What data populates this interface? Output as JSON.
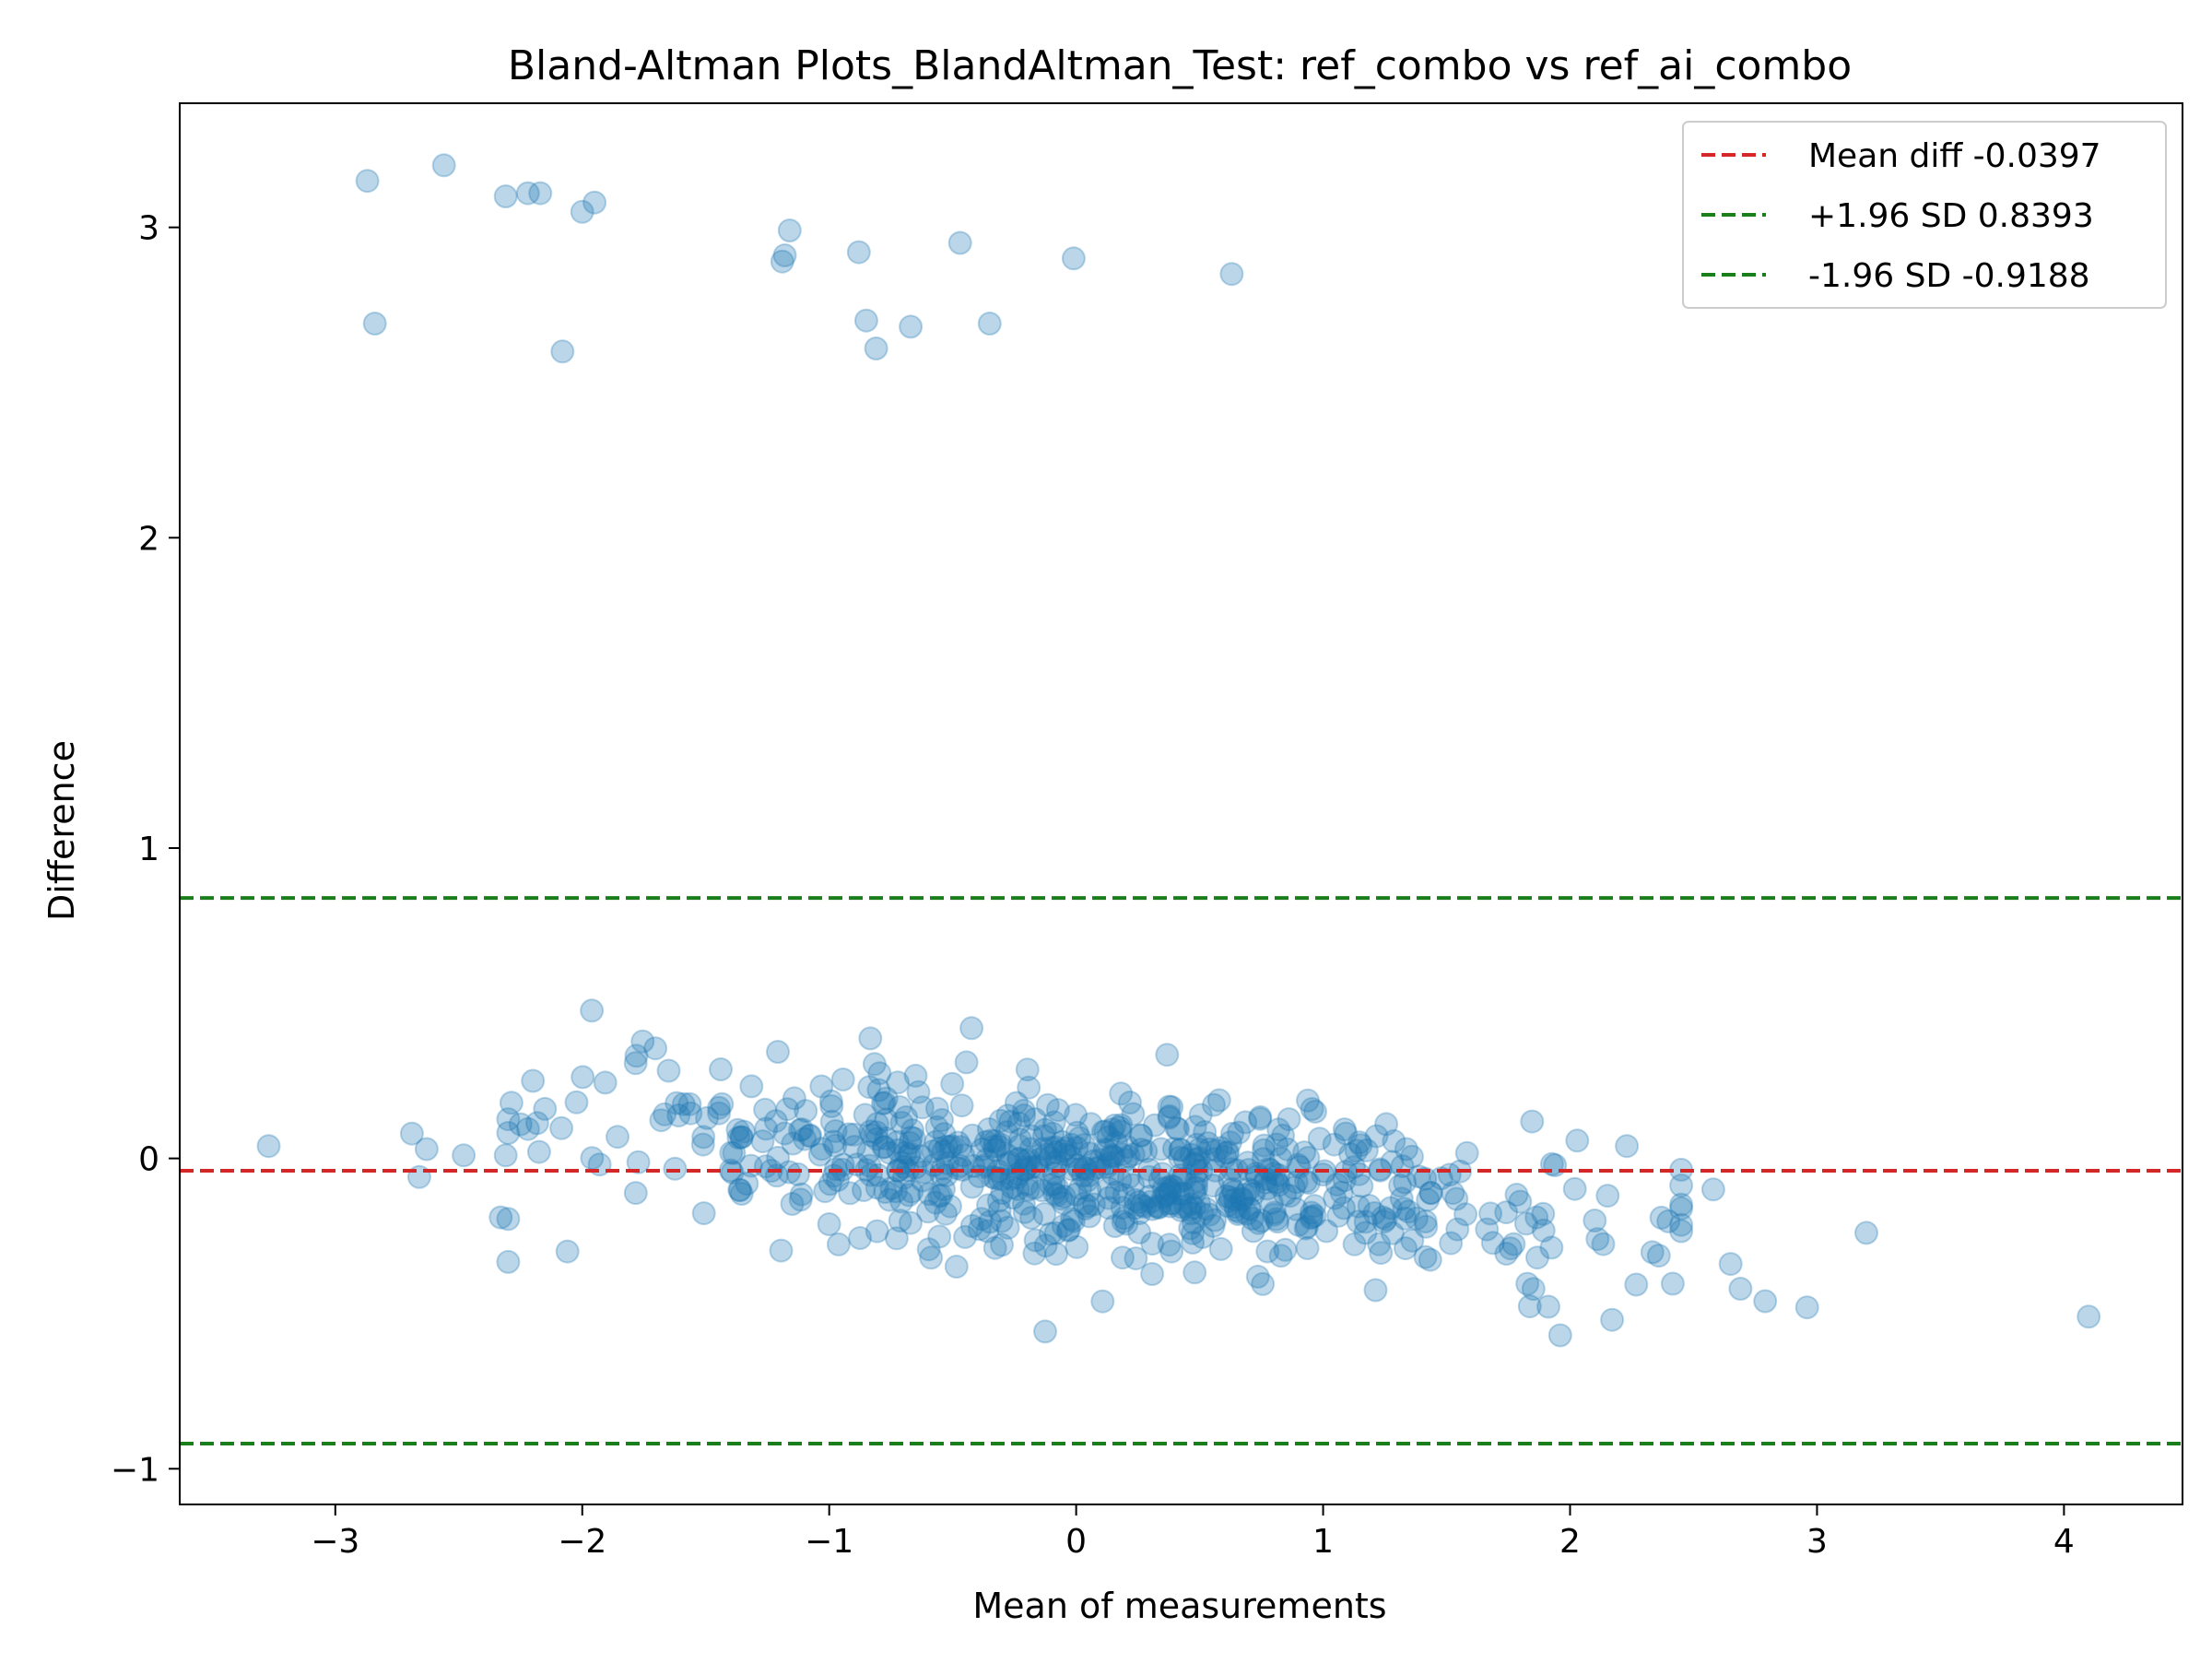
{
  "chart_data": {
    "type": "scatter",
    "title": "Bland-Altman Plots_BlandAltman_Test: ref_combo vs ref_ai_combo",
    "xlabel": "Mean of measurements",
    "ylabel": "Difference",
    "xlim": [
      -3.63,
      4.48
    ],
    "ylim": [
      -1.115,
      3.4
    ],
    "xticks": [
      -3,
      -2,
      -1,
      0,
      1,
      2,
      3,
      4
    ],
    "yticks": [
      -1,
      0,
      1,
      2,
      3
    ],
    "xtick_labels": [
      "−3",
      "−2",
      "−1",
      "0",
      "1",
      "2",
      "3",
      "4"
    ],
    "ytick_labels": [
      "−1",
      "0",
      "1",
      "2",
      "3"
    ],
    "grid": false,
    "legend_position": "top-right",
    "reference_lines": [
      {
        "name": "Mean diff -0.0397",
        "y": -0.0397,
        "color": "#d62728"
      },
      {
        "name": "+1.96 SD 0.8393",
        "y": 0.8393,
        "color": "#1a7f1a"
      },
      {
        "name": "-1.96 SD -0.9188",
        "y": -0.9188,
        "color": "#1a7f1a"
      }
    ],
    "point_color": "#1f77b4",
    "outliers": {
      "x": [
        -2.87,
        -2.84,
        -2.56,
        -2.31,
        -2.22,
        -2.17,
        -2.08,
        -2.0,
        -1.95,
        -1.19,
        -1.18,
        -1.16,
        -0.88,
        -0.85,
        -0.81,
        -0.67,
        -0.47,
        -0.35,
        -0.01,
        0.63
      ],
      "y": [
        3.15,
        2.69,
        3.2,
        3.1,
        3.11,
        3.11,
        2.6,
        3.05,
        3.08,
        2.89,
        2.91,
        2.99,
        2.92,
        2.7,
        2.61,
        2.68,
        2.95,
        2.69,
        2.9,
        2.85
      ]
    },
    "main_cloud": {
      "count": 700,
      "x_center": 0.1,
      "x_spread": 1.0,
      "y_intercept": -0.04,
      "y_slope": -0.07,
      "y_spread": 0.13
    },
    "edge_points": {
      "x": [
        -3.27,
        -2.69,
        -2.66,
        -2.63,
        -2.48,
        -2.33,
        -2.31,
        -2.25,
        -2.2,
        -2.06,
        2.23,
        2.58,
        2.65,
        2.69,
        2.79,
        2.96,
        3.2,
        4.1,
        1.96,
        2.17
      ],
      "y": [
        0.04,
        0.08,
        -0.06,
        0.03,
        0.01,
        -0.19,
        0.01,
        0.11,
        0.25,
        -0.3,
        0.04,
        -0.1,
        -0.34,
        -0.42,
        -0.46,
        -0.48,
        -0.24,
        -0.51,
        -0.57,
        -0.52
      ]
    }
  }
}
